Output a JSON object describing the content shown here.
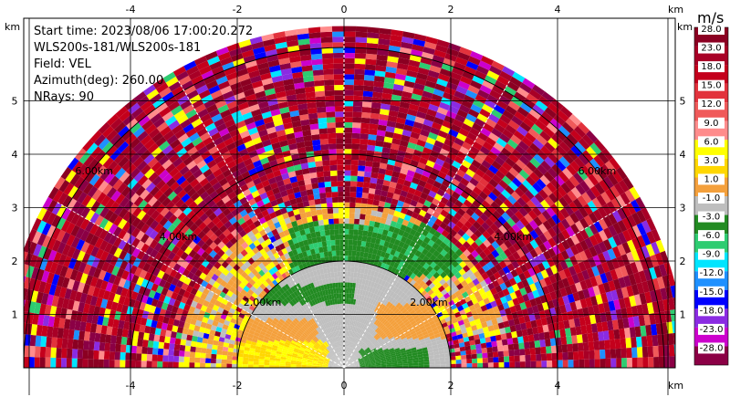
{
  "info": {
    "start_time": "Start time: 2023/08/06 17:00:20.272",
    "site": "WLS200s-181/WLS200s-181",
    "field": "Field: VEL",
    "azimuth": "Azimuth(deg): 260.00",
    "nrays": "NRays: 90"
  },
  "colorbar": {
    "unit": "m/s",
    "levels": [
      "28.0",
      "23.0",
      "18.0",
      "15.0",
      "12.0",
      "9.0",
      "6.0",
      "3.0",
      "1.0",
      "-1.0",
      "-3.0",
      "-6.0",
      "-9.0",
      "-12.0",
      "-15.0",
      "-18.0",
      "-23.0",
      "-28.0"
    ],
    "colors": [
      "#8b0022",
      "#a80026",
      "#c4001c",
      "#e2323c",
      "#f05a5a",
      "#ff8c8c",
      "#ffff00",
      "#ffd700",
      "#f4a03c",
      "#bebebe",
      "#228b22",
      "#2ecc71",
      "#00e5ff",
      "#1e90ff",
      "#0000ff",
      "#8a2be2",
      "#cc00cc",
      "#8b0045"
    ]
  },
  "chart_data": {
    "type": "heatmap",
    "title": "",
    "xlabel": "km",
    "ylabel": "km",
    "xlim": [
      -6.0,
      6.0
    ],
    "ylim": [
      -0.1,
      5.5
    ],
    "x_ticks": [
      "-4",
      "-2",
      "0",
      "2",
      "4"
    ],
    "y_ticks": [
      "1",
      "2",
      "3",
      "4",
      "5"
    ],
    "range_rings_km": [
      2.0,
      4.0,
      6.0
    ],
    "range_ring_labels": [
      "2.00km",
      "4.00km",
      "6.00km"
    ],
    "grid": true,
    "field": "VEL",
    "units": "m/s",
    "azimuth_deg": 260.0,
    "nrays": 90,
    "sector_start_deg": -90,
    "sector_end_deg": 90
  }
}
